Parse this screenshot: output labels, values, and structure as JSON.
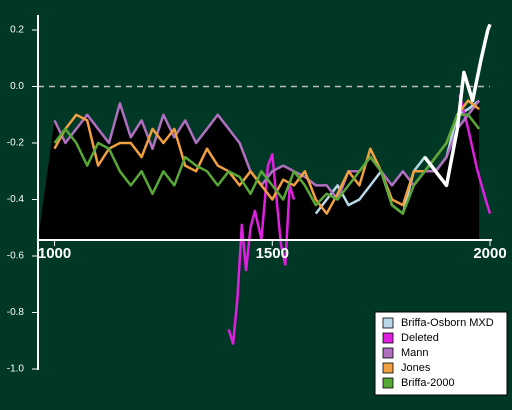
{
  "chart_data": {
    "type": "line",
    "xlim": [
      962,
      2000
    ],
    "xticks": [
      1000,
      1500,
      2000
    ],
    "ylim": [
      -1.0,
      0.25
    ],
    "yticks": [
      0.2,
      {
        "value": 0,
        "label": "0.0"
      },
      -0.2,
      -0.4,
      -0.6,
      -0.8,
      {
        "value": -1,
        "label": "-1.0"
      }
    ],
    "zero_line": true,
    "legend": "bottom-right",
    "series": [
      {
        "name": "Briffa-Osborn MXD",
        "color": "#b8d8e8",
        "x": [
          1600,
          1625,
          1650,
          1675,
          1700,
          1725,
          1750,
          1775,
          1800,
          1825,
          1850,
          1875,
          1900,
          1925,
          1950,
          1975
        ],
        "values": [
          -0.45,
          -0.4,
          -0.35,
          -0.42,
          -0.4,
          -0.35,
          -0.3,
          -0.42,
          -0.45,
          -0.3,
          -0.25,
          -0.3,
          -0.25,
          -0.1,
          -0.08,
          -0.05
        ]
      },
      {
        "name": "Deleted",
        "color": "#e020e0",
        "x": [
          1400,
          1410,
          1420,
          1430,
          1440,
          1450,
          1460,
          1475,
          1490,
          1500,
          1510,
          1520,
          1530,
          1540,
          1550,
          1740,
          1930,
          1950,
          1970,
          1990,
          2000
        ],
        "values": [
          -0.86,
          -0.91,
          -0.75,
          -0.49,
          -0.65,
          -0.5,
          -0.44,
          -0.54,
          -0.28,
          -0.24,
          -0.4,
          -0.56,
          -0.63,
          -0.35,
          -0.4,
          null,
          -0.03,
          -0.15,
          -0.29,
          -0.4,
          -0.45
        ]
      },
      {
        "name": "Mann",
        "color": "#b070c0",
        "x": [
          1000,
          1025,
          1050,
          1075,
          1100,
          1125,
          1150,
          1175,
          1200,
          1225,
          1250,
          1275,
          1300,
          1325,
          1350,
          1375,
          1400,
          1425,
          1450,
          1475,
          1500,
          1525,
          1550,
          1575,
          1600,
          1625,
          1650,
          1675,
          1700,
          1725,
          1750,
          1775,
          1800,
          1825,
          1850,
          1875,
          1900,
          1925,
          1950,
          1975
        ],
        "values": [
          -0.12,
          -0.2,
          -0.15,
          -0.1,
          -0.15,
          -0.2,
          -0.06,
          -0.18,
          -0.12,
          -0.22,
          -0.1,
          -0.18,
          -0.12,
          -0.2,
          -0.15,
          -0.1,
          -0.15,
          -0.2,
          -0.3,
          -0.35,
          -0.3,
          -0.28,
          -0.3,
          -0.32,
          -0.35,
          -0.35,
          -0.4,
          -0.3,
          -0.3,
          -0.25,
          -0.3,
          -0.35,
          -0.3,
          -0.35,
          -0.3,
          -0.3,
          -0.25,
          -0.15,
          -0.1,
          -0.05
        ]
      },
      {
        "name": "Jones",
        "color": "#f0a040",
        "x": [
          1000,
          1025,
          1050,
          1075,
          1100,
          1125,
          1150,
          1175,
          1200,
          1225,
          1250,
          1275,
          1300,
          1325,
          1350,
          1375,
          1400,
          1425,
          1450,
          1475,
          1500,
          1525,
          1550,
          1575,
          1600,
          1625,
          1650,
          1675,
          1700,
          1725,
          1750,
          1775,
          1800,
          1825,
          1850,
          1875,
          1900,
          1925,
          1950,
          1975
        ],
        "values": [
          -0.22,
          -0.15,
          -0.1,
          -0.12,
          -0.28,
          -0.22,
          -0.2,
          -0.2,
          -0.25,
          -0.15,
          -0.2,
          -0.15,
          -0.28,
          -0.3,
          -0.22,
          -0.28,
          -0.3,
          -0.35,
          -0.3,
          -0.35,
          -0.4,
          -0.33,
          -0.35,
          -0.3,
          -0.4,
          -0.45,
          -0.38,
          -0.3,
          -0.35,
          -0.22,
          -0.3,
          -0.4,
          -0.42,
          -0.3,
          -0.3,
          -0.25,
          -0.2,
          -0.1,
          -0.05,
          -0.08
        ]
      },
      {
        "name": "Briffa-2000",
        "color": "#58a838",
        "x": [
          1000,
          1025,
          1050,
          1075,
          1100,
          1125,
          1150,
          1175,
          1200,
          1225,
          1250,
          1275,
          1300,
          1325,
          1350,
          1375,
          1400,
          1425,
          1450,
          1475,
          1500,
          1525,
          1550,
          1575,
          1600,
          1625,
          1650,
          1675,
          1700,
          1725,
          1750,
          1775,
          1800,
          1825,
          1850,
          1875,
          1900,
          1925,
          1950,
          1975
        ],
        "values": [
          -0.2,
          -0.15,
          -0.2,
          -0.28,
          -0.2,
          -0.22,
          -0.3,
          -0.35,
          -0.3,
          -0.38,
          -0.3,
          -0.35,
          -0.25,
          -0.28,
          -0.3,
          -0.35,
          -0.3,
          -0.32,
          -0.38,
          -0.3,
          -0.35,
          -0.4,
          -0.3,
          -0.35,
          -0.42,
          -0.38,
          -0.4,
          -0.35,
          -0.3,
          -0.25,
          -0.3,
          -0.42,
          -0.45,
          -0.35,
          -0.3,
          -0.25,
          -0.2,
          -0.1,
          -0.1,
          -0.15
        ]
      },
      {
        "color": "#ffffff",
        "x": [
          1850,
          1875,
          1900,
          1925,
          1940,
          1960,
          1980,
          1995,
          2000
        ],
        "values": [
          -0.25,
          -0.3,
          -0.35,
          -0.15,
          0.05,
          -0.05,
          0.1,
          0.2,
          0.22
        ]
      }
    ]
  }
}
